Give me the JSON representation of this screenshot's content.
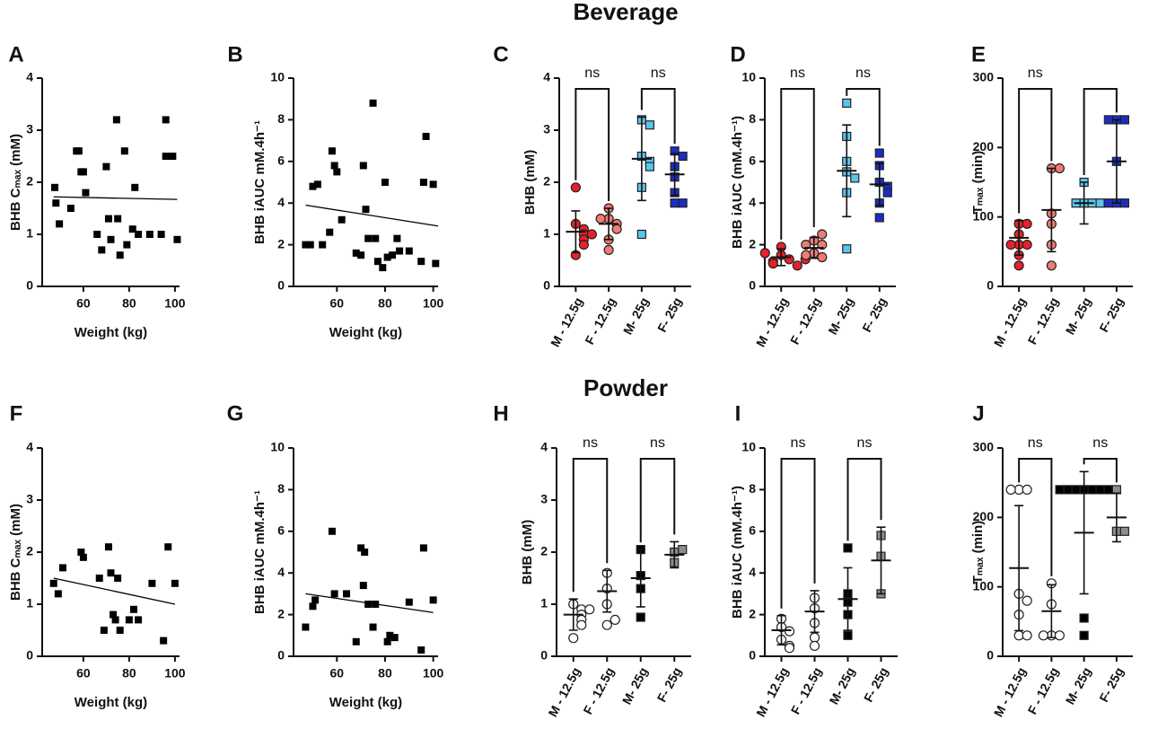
{
  "row_titles": [
    "Beverage",
    "Powder"
  ],
  "chart_data": [
    {
      "type": "scatter",
      "label": "A",
      "ylabel": "BHB Cₘₐₓ (mM)",
      "xlabel": "Weight (kg)",
      "x": [
        47.5,
        48,
        49.5,
        54.5,
        57,
        58,
        59,
        60,
        61,
        66,
        68,
        70,
        71,
        72,
        74.5,
        75,
        76,
        78,
        79,
        81.5,
        82.5,
        84,
        89,
        94,
        96,
        96,
        99,
        101
      ],
      "y": [
        1.9,
        1.6,
        1.2,
        1.5,
        2.6,
        2.6,
        2.2,
        2.2,
        1.8,
        1.0,
        0.7,
        2.3,
        1.3,
        0.9,
        3.2,
        1.3,
        0.6,
        2.6,
        0.8,
        1.1,
        1.9,
        1.0,
        1.0,
        1.0,
        3.2,
        2.5,
        2.5,
        0.9
      ],
      "fit_x": [
        47,
        101
      ],
      "fit_y": [
        1.72,
        1.67
      ],
      "color": "#000000",
      "xlim": [
        42,
        102
      ],
      "ylim": [
        0,
        4
      ],
      "xticks": [
        60,
        80,
        100
      ],
      "yticks": [
        0,
        1,
        2,
        3,
        4
      ]
    },
    {
      "type": "scatter",
      "label": "B",
      "ylabel": "BHB iAUC mM.4h⁻¹",
      "xlabel": "Weight (kg)",
      "x": [
        47,
        49,
        50,
        52,
        54,
        57,
        58,
        59,
        60,
        62,
        68,
        70,
        71,
        72,
        73,
        75,
        76,
        77,
        79,
        80,
        81,
        83,
        85,
        86,
        90,
        95,
        96,
        97,
        100,
        101
      ],
      "y": [
        2.0,
        2.0,
        4.8,
        4.9,
        2.0,
        2.6,
        6.5,
        5.8,
        5.5,
        3.2,
        1.6,
        1.5,
        5.8,
        3.7,
        2.3,
        8.8,
        2.3,
        1.2,
        0.9,
        5.0,
        1.4,
        1.5,
        2.3,
        1.7,
        1.7,
        1.2,
        5.0,
        7.2,
        4.9,
        1.1
      ],
      "fit_x": [
        47,
        102
      ],
      "fit_y": [
        3.9,
        2.9
      ],
      "color": "#000000",
      "xlim": [
        42,
        102
      ],
      "ylim": [
        0,
        10
      ],
      "xticks": [
        60,
        80,
        100
      ],
      "yticks": [
        0,
        2,
        4,
        6,
        8,
        10
      ]
    },
    {
      "type": "dot",
      "label": "C",
      "ylabel": "BHB (mM)",
      "categories": [
        "M - 12.5g",
        "F - 12.5g",
        "M- 25g",
        "F- 25g"
      ],
      "points": [
        [
          1.9,
          1.2,
          1.1,
          1.0,
          0.9,
          0.8,
          0.6,
          1.0
        ],
        [
          1.5,
          1.3,
          1.2,
          1.1,
          0.9,
          0.7,
          1.3
        ],
        [
          3.2,
          3.1,
          2.5,
          2.4,
          2.3,
          1.9,
          1.0
        ],
        [
          2.6,
          2.5,
          2.3,
          2.1,
          1.8,
          1.6,
          1.6
        ]
      ],
      "means": [
        1.05,
        1.2,
        2.45,
        2.15
      ],
      "sds": [
        0.4,
        0.3,
        0.8,
        0.4
      ],
      "colors": [
        "#e8202a",
        "#f07b72",
        "#5bc4ee",
        "#1a2ec7"
      ],
      "markers": [
        "circle",
        "circle",
        "square",
        "square"
      ],
      "ylim": [
        0,
        4
      ],
      "yticks": [
        0,
        1,
        2,
        3,
        4
      ],
      "brackets": [
        {
          "groups": [
            0,
            1
          ],
          "label": "ns"
        },
        {
          "groups": [
            2,
            3
          ],
          "label": "ns"
        }
      ]
    },
    {
      "type": "dot",
      "label": "D",
      "ylabel": "BHB iAUC (mM.4h⁻¹)",
      "categories": [
        "M - 12.5g",
        "F - 12.5g",
        "M- 25g",
        "F- 25g"
      ],
      "points": [
        [
          1.9,
          1.5,
          1.3,
          1.2,
          1.1,
          1.0,
          1.3,
          1.6
        ],
        [
          2.2,
          2.0,
          1.6,
          1.4,
          2.5,
          1.5,
          2.0
        ],
        [
          8.8,
          7.2,
          6.0,
          5.5,
          5.2,
          4.5,
          1.8
        ],
        [
          6.4,
          5.8,
          5.0,
          4.8,
          4.5,
          4.0,
          3.3
        ]
      ],
      "means": [
        1.4,
        1.85,
        5.55,
        4.9
      ],
      "sds": [
        0.4,
        0.5,
        2.2,
        1.0
      ],
      "colors": [
        "#e8202a",
        "#f07b72",
        "#5bc4ee",
        "#1a2ec7"
      ],
      "markers": [
        "circle",
        "circle",
        "square",
        "square"
      ],
      "ylim": [
        0,
        10
      ],
      "yticks": [
        0,
        2,
        4,
        6,
        8,
        10
      ],
      "brackets": [
        {
          "groups": [
            0,
            1
          ],
          "label": "ns"
        },
        {
          "groups": [
            2,
            3
          ],
          "label": "ns"
        }
      ]
    },
    {
      "type": "dot",
      "label": "E",
      "ylabel": "Tₘₐₓ (min)",
      "categories": [
        "M - 12.5g",
        "F - 12.5g",
        "M- 25g",
        "F- 25g"
      ],
      "points": [
        [
          90,
          90,
          75,
          60,
          60,
          45,
          30,
          60
        ],
        [
          170,
          170,
          105,
          90,
          60,
          30
        ],
        [
          150,
          120,
          120,
          120,
          120
        ],
        [
          240,
          240,
          240,
          180,
          120,
          120,
          120
        ]
      ],
      "means": [
        70,
        110,
        120,
        180
      ],
      "sds": [
        25,
        60,
        30,
        60
      ],
      "colors": [
        "#e8202a",
        "#f07b72",
        "#5bc4ee",
        "#1a2ec7"
      ],
      "markers": [
        "circle",
        "circle",
        "square",
        "square"
      ],
      "ylim": [
        0,
        300
      ],
      "yticks": [
        0,
        100,
        200,
        300
      ],
      "brackets": [
        {
          "groups": [
            0,
            1
          ],
          "label": "ns"
        },
        {
          "groups": [
            2,
            3
          ]
        }
      ]
    },
    {
      "type": "scatter",
      "label": "F",
      "ylabel": "BHB Cₘₐₓ (mM)",
      "xlabel": "Weight (kg)",
      "x": [
        47,
        49,
        51,
        59,
        60,
        67,
        69,
        71,
        72,
        73,
        74,
        75,
        76,
        80,
        82,
        84,
        90,
        95,
        97,
        100
      ],
      "y": [
        1.4,
        1.2,
        1.7,
        2.0,
        1.9,
        1.5,
        0.5,
        2.1,
        1.6,
        0.8,
        0.7,
        1.5,
        0.5,
        0.7,
        0.9,
        0.7,
        1.4,
        0.3,
        2.1,
        1.4
      ],
      "fit_x": [
        47,
        100
      ],
      "fit_y": [
        1.5,
        1.0
      ],
      "color": "#000000",
      "xlim": [
        42,
        102
      ],
      "ylim": [
        0,
        4
      ],
      "xticks": [
        60,
        80,
        100
      ],
      "yticks": [
        0,
        1,
        2,
        3,
        4
      ]
    },
    {
      "type": "scatter",
      "label": "G",
      "ylabel": "BHB iAUC mM.4h⁻¹",
      "xlabel": "Weight (kg)",
      "x": [
        47,
        50,
        51,
        58,
        59,
        64,
        68,
        70,
        71,
        71.5,
        73,
        75,
        76,
        81,
        82,
        84,
        90,
        95,
        96,
        100
      ],
      "y": [
        1.4,
        2.4,
        2.7,
        6.0,
        3.0,
        3.0,
        0.7,
        5.2,
        3.4,
        5.0,
        2.5,
        1.4,
        2.5,
        0.7,
        1.0,
        0.9,
        2.6,
        0.3,
        5.2,
        2.7
      ],
      "fit_x": [
        47,
        100
      ],
      "fit_y": [
        3.0,
        2.1
      ],
      "color": "#000000",
      "xlim": [
        42,
        102
      ],
      "ylim": [
        0,
        10
      ],
      "xticks": [
        60,
        80,
        100
      ],
      "yticks": [
        0,
        2,
        4,
        6,
        8,
        10
      ]
    },
    {
      "type": "dot",
      "label": "H",
      "ylabel": "BHB (mM)",
      "categories": [
        "M - 12.5g",
        "F - 12.5g",
        "M- 25g",
        "F- 25g"
      ],
      "points": [
        [
          1.0,
          0.9,
          0.8,
          0.7,
          0.6,
          0.35,
          0.9
        ],
        [
          1.6,
          1.3,
          1.0,
          0.6,
          0.7
        ],
        [
          2.05,
          1.55,
          1.3,
          0.75
        ],
        [
          2.0,
          1.8,
          2.05
        ]
      ],
      "means": [
        0.8,
        1.25,
        1.5,
        1.95
      ],
      "sds": [
        0.3,
        0.4,
        0.55,
        0.25
      ],
      "colors": [
        "#ffffff",
        "#ffffff",
        "#000000",
        "#8c8c8c"
      ],
      "markers": [
        "circle",
        "circle",
        "square",
        "square"
      ],
      "ylim": [
        0,
        4
      ],
      "yticks": [
        0,
        1,
        2,
        3,
        4
      ],
      "brackets": [
        {
          "groups": [
            0,
            1
          ],
          "label": "ns"
        },
        {
          "groups": [
            2,
            3
          ],
          "label": "ns"
        }
      ]
    },
    {
      "type": "dot",
      "label": "I",
      "ylabel": "BHB iAUC (mM.4h⁻¹)",
      "categories": [
        "M - 12.5g",
        "F - 12.5g",
        "M- 25g",
        "F- 25g"
      ],
      "points": [
        [
          1.8,
          1.4,
          1.2,
          0.8,
          0.5,
          0.4
        ],
        [
          2.8,
          2.3,
          1.6,
          0.9,
          0.5
        ],
        [
          5.2,
          3.0,
          2.6,
          2.0,
          1.0
        ],
        [
          5.8,
          4.8,
          3.0
        ]
      ],
      "means": [
        1.25,
        2.15,
        2.75,
        4.6
      ],
      "sds": [
        0.7,
        1.0,
        1.5,
        1.6
      ],
      "colors": [
        "#ffffff",
        "#ffffff",
        "#000000",
        "#8c8c8c"
      ],
      "markers": [
        "circle",
        "circle",
        "square",
        "square"
      ],
      "ylim": [
        0,
        10
      ],
      "yticks": [
        0,
        2,
        4,
        6,
        8,
        10
      ],
      "brackets": [
        {
          "groups": [
            0,
            1
          ],
          "label": "ns"
        },
        {
          "groups": [
            2,
            3
          ],
          "label": "ns"
        }
      ]
    },
    {
      "type": "dot",
      "label": "J",
      "ylabel": "Tₘₐₓ (min)",
      "categories": [
        "M - 12.5g",
        "F - 12.5g",
        "M- 25g",
        "F- 25g"
      ],
      "points": [
        [
          240,
          240,
          240,
          90,
          80,
          60,
          30,
          30
        ],
        [
          105,
          75,
          30,
          30,
          30
        ],
        [
          240,
          240,
          240,
          240,
          240,
          240,
          240,
          30,
          55
        ],
        [
          240,
          180,
          180
        ]
      ],
      "means": [
        127,
        65,
        178,
        200
      ],
      "sds": [
        90,
        38,
        88,
        35
      ],
      "colors": [
        "#ffffff",
        "#ffffff",
        "#000000",
        "#8c8c8c"
      ],
      "markers": [
        "circle",
        "circle",
        "square",
        "square"
      ],
      "ylim": [
        0,
        300
      ],
      "yticks": [
        0,
        100,
        200,
        300
      ],
      "brackets": [
        {
          "groups": [
            0,
            1
          ],
          "label": "ns"
        },
        {
          "groups": [
            2,
            3
          ],
          "label": "ns"
        }
      ]
    }
  ]
}
